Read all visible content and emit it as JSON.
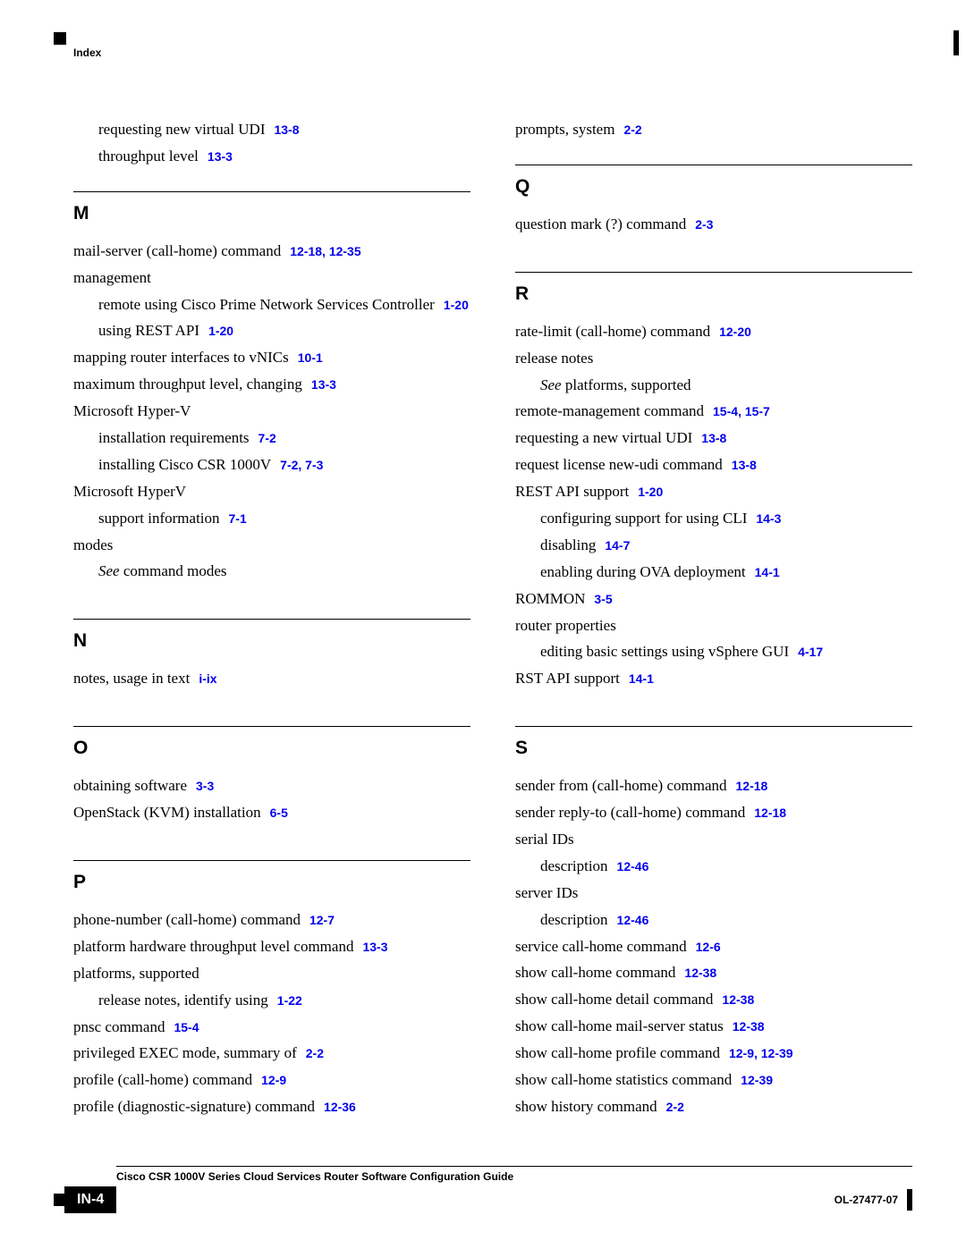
{
  "header": {
    "label": "Index"
  },
  "footer": {
    "title": "Cisco CSR 1000V Series Cloud Services Router Software Configuration Guide",
    "page_number": "IN-4",
    "doc_id": "OL-27477-07"
  },
  "left_top": [
    {
      "text": "requesting new virtual UDI",
      "refs": "13-8",
      "indent": 1
    },
    {
      "text": "throughput level",
      "refs": "13-3",
      "indent": 1
    }
  ],
  "sections": {
    "M": [
      {
        "text": "mail-server (call-home) command",
        "refs": "12-18, 12-35",
        "indent": 0
      },
      {
        "text": "management",
        "indent": 0
      },
      {
        "text": "remote using Cisco Prime Network Services Controller",
        "refs": "1-20",
        "indent": 1
      },
      {
        "text": "using REST API",
        "refs": "1-20",
        "indent": 1
      },
      {
        "text": "mapping router interfaces to vNICs",
        "refs": "10-1",
        "indent": 0
      },
      {
        "text": "maximum throughput level, changing",
        "refs": "13-3",
        "indent": 0
      },
      {
        "text": "Microsoft Hyper-V",
        "indent": 0
      },
      {
        "text": "installation requirements",
        "refs": "7-2",
        "indent": 1
      },
      {
        "text": "installing Cisco CSR 1000V",
        "refs": "7-2, 7-3",
        "indent": 1
      },
      {
        "text": "Microsoft HyperV",
        "indent": 0
      },
      {
        "text": "support information",
        "refs": "7-1",
        "indent": 1
      },
      {
        "text": "modes",
        "indent": 0
      },
      {
        "see": "See ",
        "text": "command modes",
        "indent": 1
      }
    ],
    "N": [
      {
        "text": "notes, usage in text",
        "refs": "i-ix",
        "indent": 0
      }
    ],
    "O": [
      {
        "text": "obtaining software",
        "refs": "3-3",
        "indent": 0
      },
      {
        "text": "OpenStack (KVM) installation",
        "refs": "6-5",
        "indent": 0
      }
    ],
    "P": [
      {
        "text": "phone-number (call-home) command",
        "refs": "12-7",
        "indent": 0
      },
      {
        "text": "platform hardware throughput level command",
        "refs": "13-3",
        "indent": 0
      },
      {
        "text": "platforms, supported",
        "indent": 0
      },
      {
        "text": "release notes, identify using",
        "refs": "1-22",
        "indent": 1
      },
      {
        "text": "pnsc command",
        "refs": "15-4",
        "indent": 0
      },
      {
        "text": "privileged EXEC mode, summary of",
        "refs": "2-2",
        "indent": 0
      },
      {
        "text": "profile (call-home) command",
        "refs": "12-9",
        "indent": 0
      },
      {
        "text": "profile (diagnostic-signature) command",
        "refs": "12-36",
        "indent": 0
      }
    ]
  },
  "right_top": [
    {
      "text": "prompts, system",
      "refs": "2-2",
      "indent": 0
    }
  ],
  "sections_right": {
    "Q": [
      {
        "text": "question mark (?) command",
        "refs": "2-3",
        "indent": 0
      }
    ],
    "R": [
      {
        "text": "rate-limit (call-home) command",
        "refs": "12-20",
        "indent": 0
      },
      {
        "text": "release notes",
        "indent": 0
      },
      {
        "see": "See ",
        "text": "platforms, supported",
        "indent": 1
      },
      {
        "text": "remote-management command",
        "refs": "15-4, 15-7",
        "indent": 0
      },
      {
        "text": "requesting a new virtual UDI",
        "refs": "13-8",
        "indent": 0
      },
      {
        "text": "request license new-udi command",
        "refs": "13-8",
        "indent": 0
      },
      {
        "text": "REST API support",
        "refs": "1-20",
        "indent": 0
      },
      {
        "text": "configuring support for using CLI",
        "refs": "14-3",
        "indent": 1
      },
      {
        "text": "disabling",
        "refs": "14-7",
        "indent": 1
      },
      {
        "text": "enabling during OVA deployment",
        "refs": "14-1",
        "indent": 1
      },
      {
        "text": "ROMMON",
        "refs": "3-5",
        "indent": 0
      },
      {
        "text": "router properties",
        "indent": 0
      },
      {
        "text": "editing basic settings using vSphere GUI",
        "refs": "4-17",
        "indent": 1
      },
      {
        "text": "RST API support",
        "refs": "14-1",
        "indent": 0
      }
    ],
    "S": [
      {
        "text": "sender from (call-home) command",
        "refs": "12-18",
        "indent": 0
      },
      {
        "text": "sender reply-to (call-home) command",
        "refs": "12-18",
        "indent": 0
      },
      {
        "text": "serial IDs",
        "indent": 0
      },
      {
        "text": "description",
        "refs": "12-46",
        "indent": 1
      },
      {
        "text": "server IDs",
        "indent": 0
      },
      {
        "text": "description",
        "refs": "12-46",
        "indent": 1
      },
      {
        "text": "service call-home command",
        "refs": "12-6",
        "indent": 0
      },
      {
        "text": "show call-home command",
        "refs": "12-38",
        "indent": 0
      },
      {
        "text": "show call-home detail command",
        "refs": "12-38",
        "indent": 0
      },
      {
        "text": "show call-home mail-server status",
        "refs": "12-38",
        "indent": 0
      },
      {
        "text": "show call-home profile command",
        "refs": "12-9, 12-39",
        "indent": 0
      },
      {
        "text": "show call-home statistics command",
        "refs": "12-39",
        "indent": 0
      },
      {
        "text": "show history command",
        "refs": "2-2",
        "indent": 0
      }
    ]
  }
}
